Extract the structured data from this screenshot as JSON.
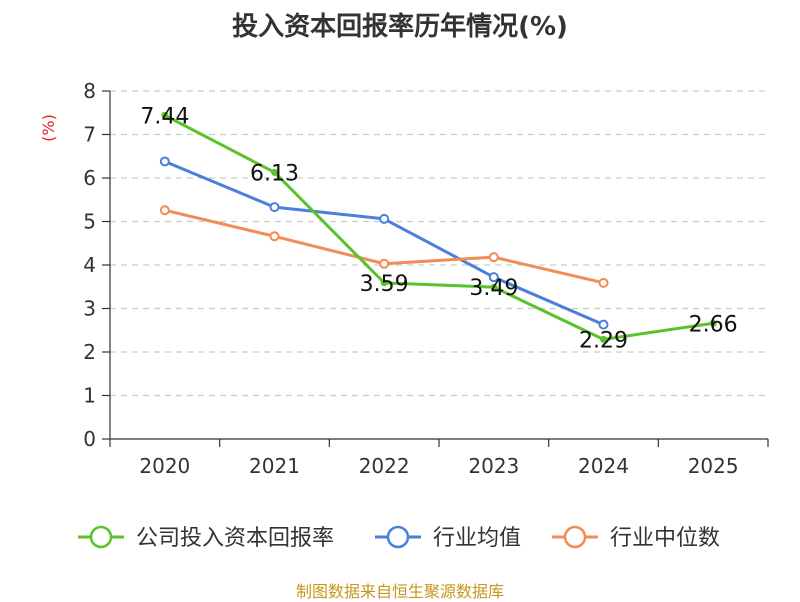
{
  "chart_data": {
    "type": "line",
    "title": "投入资本回报率历年情况(%)",
    "ylabel": "(%)",
    "xlabel": "",
    "ylim": [
      0,
      8
    ],
    "yticks": [
      0,
      1,
      2,
      3,
      4,
      5,
      6,
      7,
      8
    ],
    "categories": [
      "2020",
      "2021",
      "2022",
      "2023",
      "2024",
      "2025"
    ],
    "grid": true,
    "legend_position": "bottom",
    "series": [
      {
        "name": "公司投入资本回报率",
        "color": "#5ac22a",
        "values": [
          7.44,
          6.13,
          3.59,
          3.49,
          2.29,
          2.66
        ],
        "labels": [
          "7.44",
          "6.13",
          "3.59",
          "3.49",
          "2.29",
          "2.66"
        ]
      },
      {
        "name": "行业均值",
        "color": "#4a7fdc",
        "values": [
          6.38,
          5.33,
          5.06,
          3.72,
          2.63,
          null
        ]
      },
      {
        "name": "行业中位数",
        "color": "#f28b55",
        "values": [
          5.26,
          4.66,
          4.03,
          4.18,
          3.59,
          null
        ]
      }
    ]
  },
  "footer": {
    "source": "制图数据来自恒生聚源数据库",
    "source_color": "#c8961e"
  }
}
